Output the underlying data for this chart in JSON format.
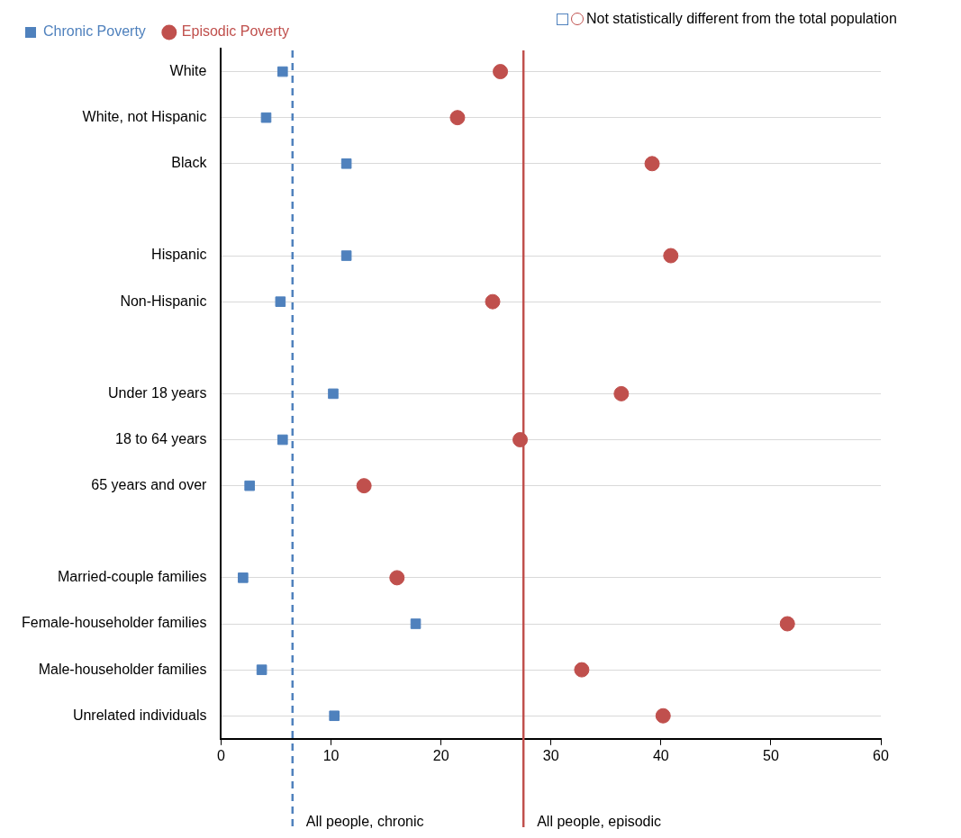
{
  "chart_data": {
    "type": "scatter",
    "categories": [
      "White",
      "White, not Hispanic",
      "Black",
      null,
      "Hispanic",
      "Non-Hispanic",
      null,
      "Under 18 years",
      "18 to 64 years",
      "65 years and over",
      null,
      "Married-couple families",
      "Female-householder families",
      "Male-householder families",
      "Unrelated individuals"
    ],
    "series": [
      {
        "name": "Chronic Poverty",
        "color": "#4f81bd",
        "marker": "square",
        "values": [
          5.6,
          4.1,
          11.4,
          null,
          11.4,
          5.4,
          null,
          10.2,
          5.6,
          2.6,
          null,
          2.0,
          17.7,
          3.7,
          10.3
        ]
      },
      {
        "name": "Episodic Poverty",
        "color": "#c0504d",
        "marker": "circle",
        "values": [
          25.4,
          21.5,
          39.2,
          null,
          40.9,
          24.7,
          null,
          36.4,
          27.2,
          13.0,
          null,
          16.0,
          51.5,
          32.8,
          40.2
        ]
      }
    ],
    "xlim": [
      0,
      60
    ],
    "xticks": [
      0,
      10,
      20,
      30,
      40,
      50,
      60
    ],
    "orientation": "horizontal",
    "grid": "y",
    "legend": "top",
    "ref_lines": [
      {
        "axis": "x",
        "value": 6.5,
        "label": "All people, chronic",
        "color": "#4f81bd",
        "line_style": "dashed"
      },
      {
        "axis": "x",
        "value": 27.5,
        "label": "All people, episodic",
        "color": "#c0504d",
        "line_style": "solid"
      }
    ],
    "annotations": [
      "Not statistically different from the total population"
    ]
  }
}
